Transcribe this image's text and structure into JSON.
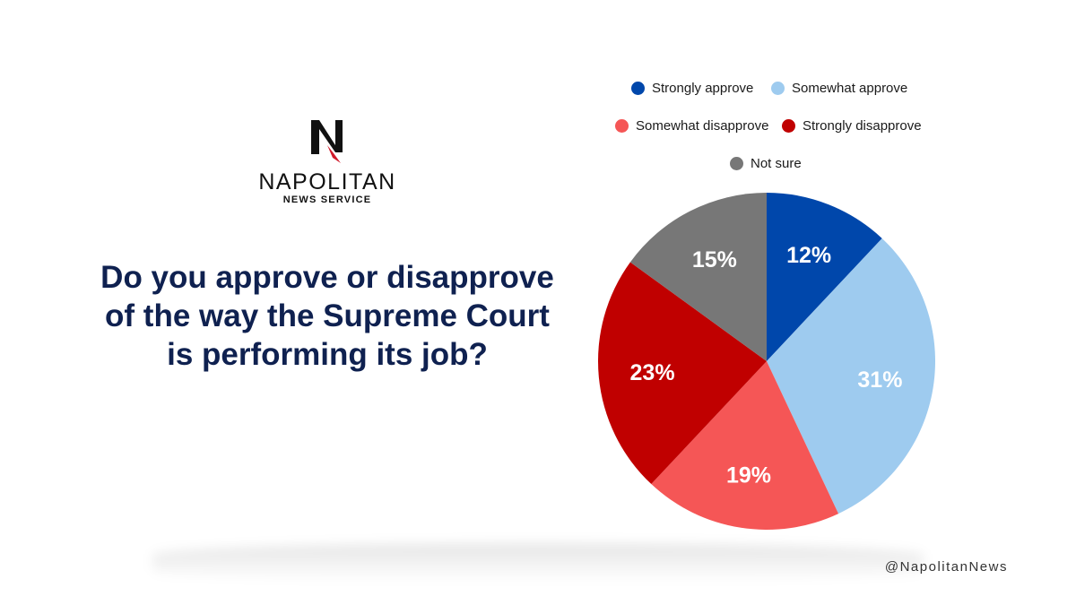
{
  "logo": {
    "brand": "NAPOLITAN",
    "sub": "NEWS SERVICE"
  },
  "question": "Do you approve or disapprove of the way the Supreme Court is performing its job?",
  "handle": "@NapolitanNews",
  "chart_data": {
    "type": "pie",
    "title": "Do you approve or disapprove of the way the Supreme Court is performing its job?",
    "legend_position": "top",
    "slices": [
      {
        "label": "Strongly approve",
        "value": 12,
        "display": "12%",
        "color": "#0047ab"
      },
      {
        "label": "Somewhat approve",
        "value": 31,
        "display": "31%",
        "color": "#9ecbef"
      },
      {
        "label": "Somewhat disapprove",
        "value": 19,
        "display": "19%",
        "color": "#f55656"
      },
      {
        "label": "Strongly disapprove",
        "value": 23,
        "display": "23%",
        "color": "#c00000"
      },
      {
        "label": "Not sure",
        "value": 15,
        "display": "15%",
        "color": "#777777"
      }
    ]
  }
}
